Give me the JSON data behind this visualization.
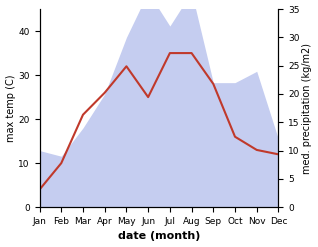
{
  "months": [
    "Jan",
    "Feb",
    "Mar",
    "Apr",
    "May",
    "Jun",
    "Jul",
    "Aug",
    "Sep",
    "Oct",
    "Nov",
    "Dec"
  ],
  "temperature": [
    4,
    10,
    21,
    26,
    32,
    25,
    35,
    35,
    28,
    16,
    13,
    12
  ],
  "precipitation": [
    10,
    9,
    14,
    20,
    30,
    38,
    32,
    38,
    22,
    22,
    24,
    12
  ],
  "temp_color": "#c0392b",
  "precip_color_fill": "#c5cdf0",
  "xlabel": "date (month)",
  "ylabel_left": "max temp (C)",
  "ylabel_right": "med. precipitation (kg/m2)",
  "ylim_left": [
    0,
    45
  ],
  "ylim_right": [
    0,
    35
  ],
  "yticks_left": [
    0,
    10,
    20,
    30,
    40
  ],
  "yticks_right": [
    0,
    5,
    10,
    15,
    20,
    25,
    30,
    35
  ],
  "precip_scale_factor": 1.2857,
  "background_color": "#ffffff"
}
